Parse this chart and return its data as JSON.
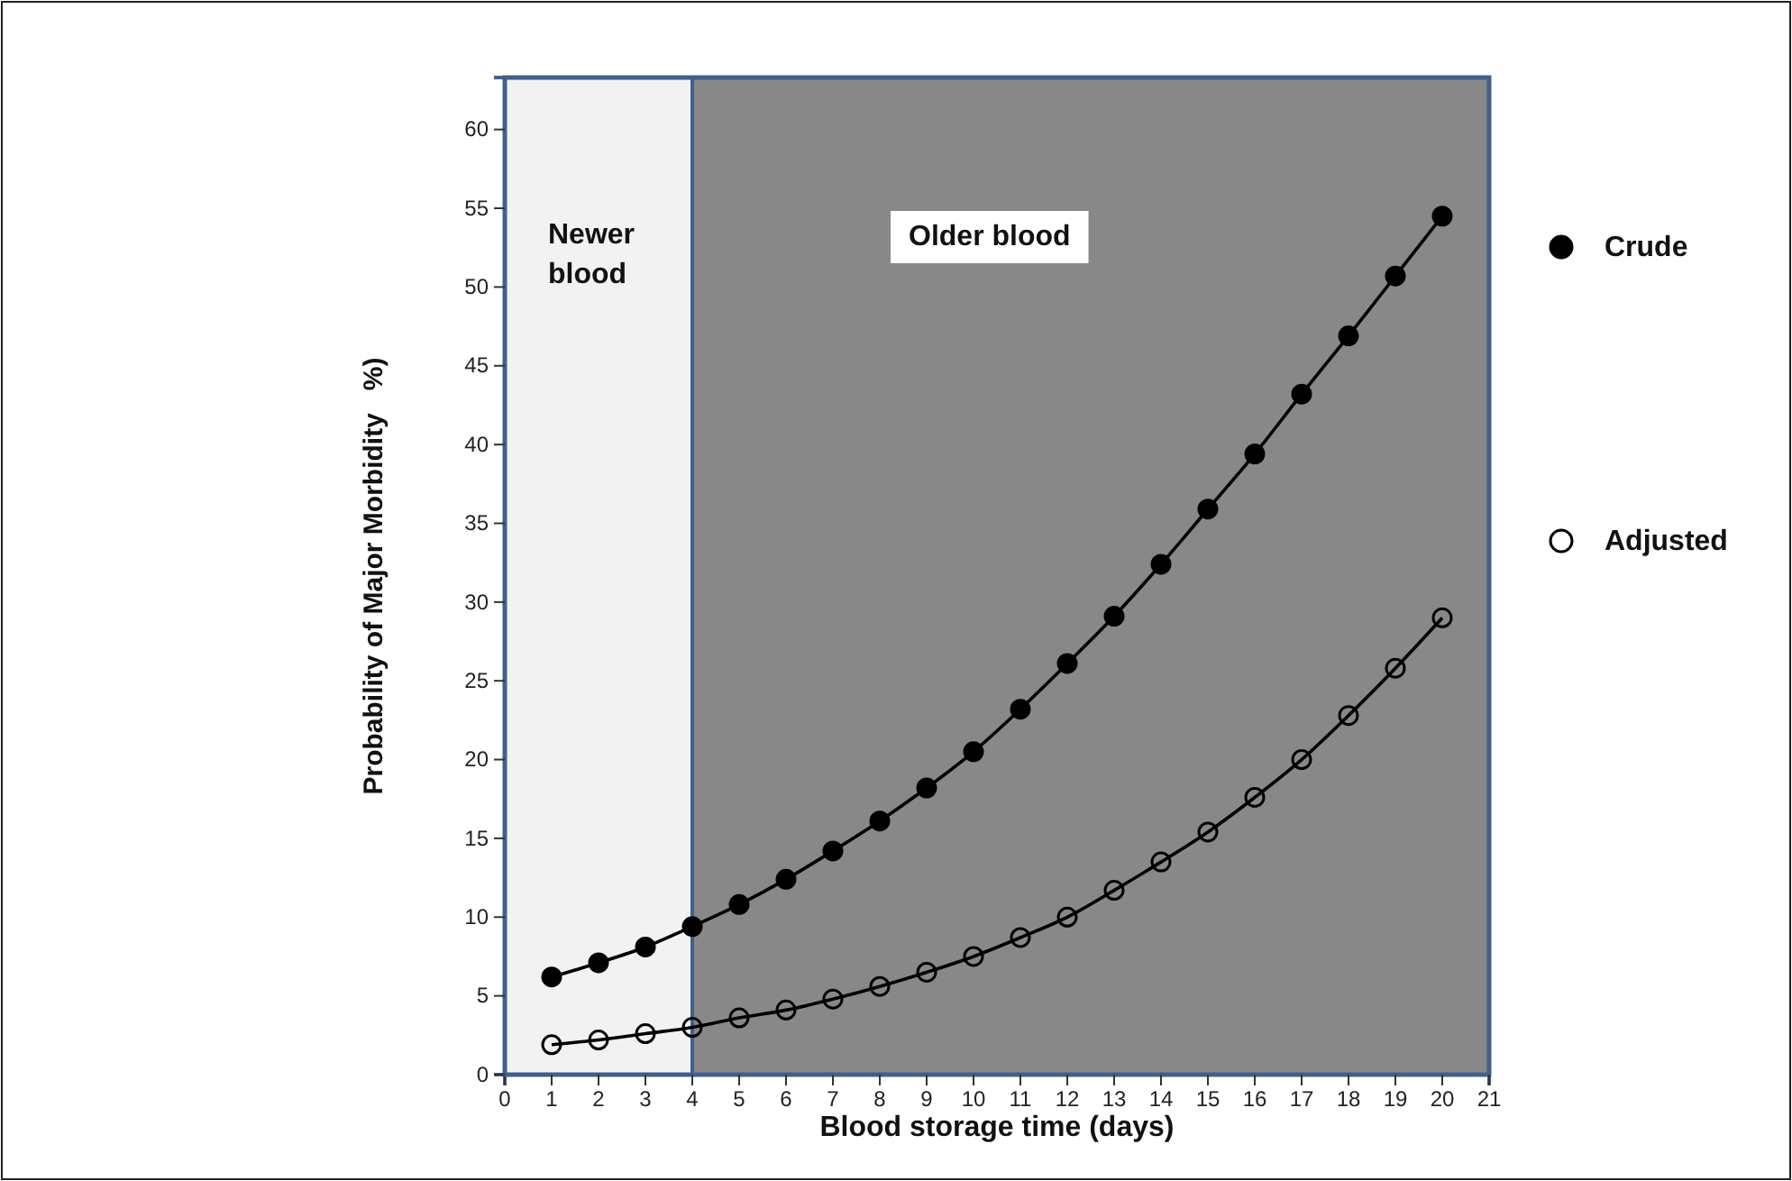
{
  "chart_data": {
    "type": "line",
    "xlabel": "Blood storage time (days)",
    "ylabel": "Probability of Major Morbidity   %)",
    "x": [
      1,
      2,
      3,
      4,
      5,
      6,
      7,
      8,
      9,
      10,
      11,
      12,
      13,
      14,
      15,
      16,
      17,
      18,
      19,
      20
    ],
    "series": [
      {
        "name": "Crude",
        "color": "#000000",
        "marker": "circle",
        "values": [
          6.2,
          7.1,
          8.1,
          9.4,
          10.8,
          12.4,
          14.2,
          16.1,
          18.2,
          20.5,
          23.2,
          26.1,
          29.1,
          32.4,
          35.9,
          39.4,
          43.2,
          46.9,
          50.7,
          54.5
        ]
      },
      {
        "name": "Adjusted",
        "color": "#000000",
        "marker": "circle-open",
        "values": [
          1.9,
          2.2,
          2.6,
          3.0,
          3.6,
          4.1,
          4.8,
          5.6,
          6.5,
          7.5,
          8.7,
          10.0,
          11.7,
          13.5,
          15.4,
          17.6,
          20.0,
          22.8,
          25.8,
          29.0
        ]
      }
    ],
    "bands": [
      {
        "axis": "x",
        "from": 0,
        "to": 4,
        "label": "Newer blood",
        "color": "#f2f2f2"
      },
      {
        "axis": "x",
        "from": 4,
        "to": 21,
        "label": "Older blood",
        "color": "#888888"
      }
    ],
    "ref_lines": [
      {
        "axis": "x",
        "value": 4,
        "color": "#41608a"
      }
    ],
    "xlim": [
      0,
      21
    ],
    "xticks": [
      0,
      1,
      2,
      3,
      4,
      5,
      6,
      7,
      8,
      9,
      10,
      11,
      12,
      13,
      14,
      15,
      16,
      17,
      18,
      19,
      20,
      21
    ],
    "ylim": [
      0,
      63.3
    ],
    "yticks": [
      0,
      5,
      10,
      15,
      20,
      25,
      30,
      35,
      40,
      45,
      50,
      55,
      60
    ],
    "grid": false,
    "legend": "right",
    "line_style": "solid"
  }
}
